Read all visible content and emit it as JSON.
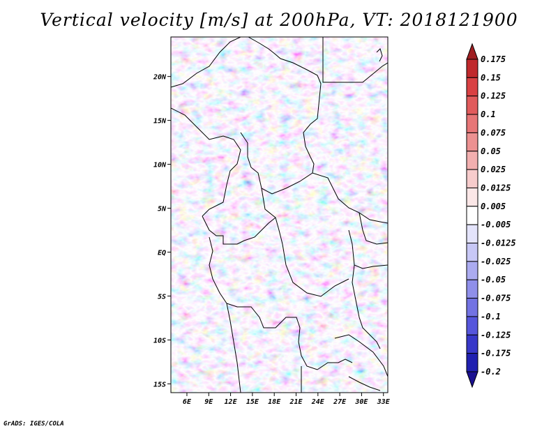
{
  "title": "Vertical velocity [m/s] at 200hPa, VT: 2018121900",
  "credit": "GrADS: IGES/COLA",
  "map": {
    "lat_ticks": [
      "20N",
      "15N",
      "10N",
      "5N",
      "EQ",
      "5S",
      "10S",
      "15S"
    ],
    "lon_ticks": [
      "6E",
      "9E",
      "12E",
      "15E",
      "18E",
      "21E",
      "24E",
      "27E",
      "30E",
      "33E"
    ],
    "lat_values": [
      20,
      15,
      10,
      5,
      0,
      -5,
      -10,
      -15
    ],
    "lon_values": [
      6,
      9,
      12,
      15,
      18,
      21,
      24,
      27,
      30,
      33
    ],
    "lat_range": [
      -16,
      24.5
    ],
    "lon_range": [
      3.8,
      33.6
    ]
  },
  "colorbar": {
    "labels": [
      "0.175",
      "0.15",
      "0.125",
      "0.1",
      "0.075",
      "0.05",
      "0.025",
      "0.0125",
      "0.005",
      "-0.005",
      "-0.0125",
      "-0.025",
      "-0.05",
      "-0.075",
      "-0.1",
      "-0.125",
      "-0.175",
      "-0.2"
    ],
    "colors": [
      "#a01f22",
      "#c0292c",
      "#d94143",
      "#e15b5c",
      "#e77677",
      "#ec9191",
      "#f2afaf",
      "#f7cccc",
      "#fbe7e7",
      "#ffffff",
      "#e4e4fb",
      "#c8c8f6",
      "#ababf0",
      "#8f8fea",
      "#7373e3",
      "#5656dc",
      "#3838c9",
      "#2020b0",
      "#1a1090"
    ]
  }
}
